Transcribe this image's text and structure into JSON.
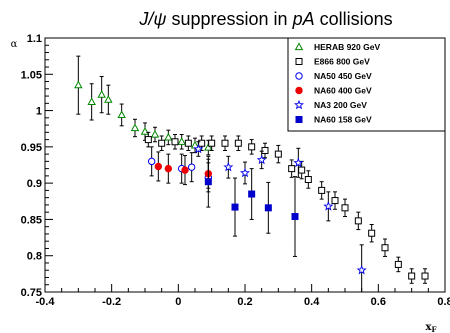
{
  "chart_data": {
    "type": "scatter",
    "title": {
      "psi_symbol": "J/ψ",
      "middle": " suppression in ",
      "italic": "pA",
      "suffix": " collisions"
    },
    "xlabel": "x",
    "xlabel_subscript": "F",
    "ylabel": "α",
    "xlim": [
      -0.4,
      0.8
    ],
    "ylim": [
      0.75,
      1.1
    ],
    "x_ticks": [
      {
        "value": -0.4,
        "label": "-0.4"
      },
      {
        "value": -0.2,
        "label": "-0.2"
      },
      {
        "value": 0,
        "label": "0"
      },
      {
        "value": 0.2,
        "label": "0.2"
      },
      {
        "value": 0.4,
        "label": "0.4"
      },
      {
        "value": 0.6,
        "label": "0.6"
      },
      {
        "value": 0.8,
        "label": "0.8"
      }
    ],
    "y_ticks": [
      {
        "value": 0.75,
        "label": "0.75"
      },
      {
        "value": 0.8,
        "label": "0.8"
      },
      {
        "value": 0.85,
        "label": "0.85"
      },
      {
        "value": 0.9,
        "label": "0.9"
      },
      {
        "value": 0.95,
        "label": "0.95"
      },
      {
        "value": 1.0,
        "label": "1"
      },
      {
        "value": 1.05,
        "label": "1.05"
      },
      {
        "value": 1.1,
        "label": "1.1"
      }
    ],
    "grid": false,
    "legend_position": "top-right",
    "series": [
      {
        "name": "HERAB 920 GeV",
        "marker": "triangle-open",
        "color": "#008800",
        "points": [
          {
            "x": -0.3,
            "y": 1.035,
            "err": 0.04
          },
          {
            "x": -0.26,
            "y": 1.012,
            "err": 0.025
          },
          {
            "x": -0.23,
            "y": 1.022,
            "err": 0.025
          },
          {
            "x": -0.21,
            "y": 1.015,
            "err": 0.02
          },
          {
            "x": -0.17,
            "y": 0.994,
            "err": 0.015
          },
          {
            "x": -0.13,
            "y": 0.976,
            "err": 0.012
          },
          {
            "x": -0.1,
            "y": 0.971,
            "err": 0.012
          },
          {
            "x": -0.07,
            "y": 0.967,
            "err": 0.01
          },
          {
            "x": -0.03,
            "y": 0.963,
            "err": 0.01
          },
          {
            "x": 0.01,
            "y": 0.957,
            "err": 0.01
          },
          {
            "x": 0.05,
            "y": 0.952,
            "err": 0.01
          },
          {
            "x": 0.09,
            "y": 0.949,
            "err": 0.01
          }
        ]
      },
      {
        "name": "E866 800 GeV",
        "marker": "square-open",
        "color": "#000000",
        "points": [
          {
            "x": -0.09,
            "y": 0.96,
            "err": 0.01
          },
          {
            "x": -0.05,
            "y": 0.955,
            "err": 0.01
          },
          {
            "x": -0.01,
            "y": 0.957,
            "err": 0.01
          },
          {
            "x": 0.03,
            "y": 0.955,
            "err": 0.01
          },
          {
            "x": 0.07,
            "y": 0.955,
            "err": 0.01
          },
          {
            "x": 0.1,
            "y": 0.955,
            "err": 0.01
          },
          {
            "x": 0.14,
            "y": 0.955,
            "err": 0.01
          },
          {
            "x": 0.18,
            "y": 0.955,
            "err": 0.01
          },
          {
            "x": 0.22,
            "y": 0.95,
            "err": 0.01
          },
          {
            "x": 0.26,
            "y": 0.945,
            "err": 0.01
          },
          {
            "x": 0.3,
            "y": 0.94,
            "err": 0.012
          },
          {
            "x": 0.34,
            "y": 0.92,
            "err": 0.012
          },
          {
            "x": 0.37,
            "y": 0.918,
            "err": 0.012
          },
          {
            "x": 0.39,
            "y": 0.905,
            "err": 0.012
          },
          {
            "x": 0.43,
            "y": 0.89,
            "err": 0.012
          },
          {
            "x": 0.47,
            "y": 0.876,
            "err": 0.012
          },
          {
            "x": 0.5,
            "y": 0.866,
            "err": 0.012
          },
          {
            "x": 0.54,
            "y": 0.848,
            "err": 0.012
          },
          {
            "x": 0.58,
            "y": 0.831,
            "err": 0.012
          },
          {
            "x": 0.62,
            "y": 0.811,
            "err": 0.012
          },
          {
            "x": 0.66,
            "y": 0.788,
            "err": 0.01
          },
          {
            "x": 0.7,
            "y": 0.772,
            "err": 0.01
          },
          {
            "x": 0.74,
            "y": 0.772,
            "err": 0.01
          }
        ]
      },
      {
        "name": "NA50 450 GeV",
        "marker": "circle-open",
        "color": "#0000ee",
        "points": [
          {
            "x": -0.08,
            "y": 0.93,
            "err": 0.02
          },
          {
            "x": 0.01,
            "y": 0.92,
            "err": 0.02
          },
          {
            "x": 0.04,
            "y": 0.922,
            "err": 0.02
          },
          {
            "x": 0.09,
            "y": 0.908,
            "err": 0.02
          }
        ]
      },
      {
        "name": "NA60 400 GeV",
        "marker": "circle-filled",
        "color": "#ee0000",
        "points": [
          {
            "x": -0.06,
            "y": 0.923,
            "err": 0.02
          },
          {
            "x": -0.03,
            "y": 0.92,
            "err": 0.02
          },
          {
            "x": 0.02,
            "y": 0.918,
            "err": 0.02
          },
          {
            "x": 0.09,
            "y": 0.913,
            "err": 0.02
          }
        ]
      },
      {
        "name": "NA3 200 GeV",
        "marker": "star-open",
        "color": "#0000ee",
        "points": [
          {
            "x": 0.06,
            "y": 0.947,
            "err": 0.01
          },
          {
            "x": 0.15,
            "y": 0.922,
            "err": 0.015
          },
          {
            "x": 0.2,
            "y": 0.914,
            "err": 0.015
          },
          {
            "x": 0.25,
            "y": 0.932,
            "err": 0.012
          },
          {
            "x": 0.36,
            "y": 0.928,
            "err": 0.02
          },
          {
            "x": 0.45,
            "y": 0.868,
            "err": 0.02
          },
          {
            "x": 0.55,
            "y": 0.78,
            "err": 0.035
          }
        ]
      },
      {
        "name": "NA60 158 GeV",
        "marker": "square-filled",
        "color": "#0000cc",
        "points": [
          {
            "x": 0.09,
            "y": 0.902,
            "err": 0.035
          },
          {
            "x": 0.17,
            "y": 0.867,
            "err": 0.04
          },
          {
            "x": 0.22,
            "y": 0.885,
            "err": 0.035
          },
          {
            "x": 0.27,
            "y": 0.866,
            "err": 0.035
          },
          {
            "x": 0.35,
            "y": 0.854,
            "err": 0.055
          }
        ]
      }
    ]
  }
}
